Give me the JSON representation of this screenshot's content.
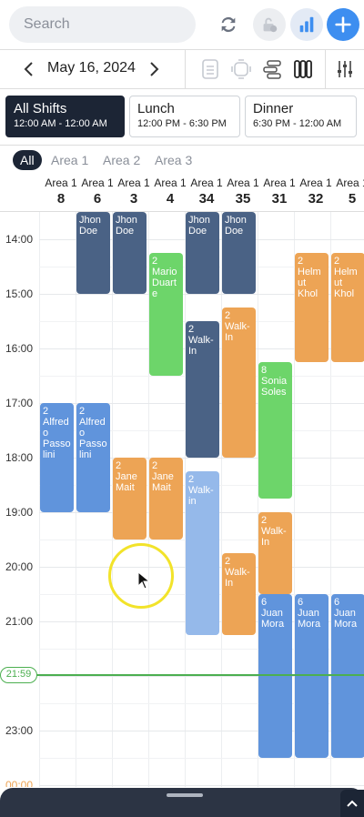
{
  "search": {
    "placeholder": "Search"
  },
  "date": {
    "label": "May 16, 2024"
  },
  "shifts": [
    {
      "name": "All Shifts",
      "time": "12:00 AM - 12:00 AM",
      "active": true
    },
    {
      "name": "Lunch",
      "time": "12:00 PM - 6:30 PM",
      "active": false
    },
    {
      "name": "Dinner",
      "time": "6:30 PM - 12:00 AM",
      "active": false
    }
  ],
  "areas": [
    "All",
    "Area 1",
    "Area 2",
    "Area 3"
  ],
  "columns": [
    {
      "area": "Area 1",
      "table": "8"
    },
    {
      "area": "Area 1",
      "table": "6"
    },
    {
      "area": "Area 1",
      "table": "3"
    },
    {
      "area": "Area 1",
      "table": "4"
    },
    {
      "area": "Area 1",
      "table": "34"
    },
    {
      "area": "Area 1",
      "table": "35"
    },
    {
      "area": "Area 1",
      "table": "31"
    },
    {
      "area": "Area 1",
      "table": "32"
    },
    {
      "area": "Area 1",
      "table": "5"
    }
  ],
  "hours": [
    "14:00",
    "15:00",
    "16:00",
    "17:00",
    "18:00",
    "19:00",
    "20:00",
    "21:00",
    "21:59",
    "23:00",
    "00:00"
  ],
  "now": "21:59",
  "colors": {
    "dark_blue": "#4a6285",
    "green": "#6dd56a",
    "orange": "#eda455",
    "blue": "#6094dc",
    "light_blue": "#95b9ea",
    "accent": "#3d8ef0",
    "now_green": "#4caf50"
  },
  "reservations": [
    {
      "col": 1,
      "start": "12:30",
      "end": "15:00",
      "party": "",
      "guest": "Jhon Doe",
      "color": "dark_blue"
    },
    {
      "col": 2,
      "start": "12:30",
      "end": "15:00",
      "party": "",
      "guest": "Jhon Doe",
      "color": "dark_blue"
    },
    {
      "col": 3,
      "start": "14:15",
      "end": "16:30",
      "party": "2",
      "guest": "Mario Duarte",
      "color": "green"
    },
    {
      "col": 4,
      "start": "12:30",
      "end": "15:00",
      "party": "",
      "guest": "Jhon Doe",
      "color": "dark_blue"
    },
    {
      "col": 4,
      "start": "15:30",
      "end": "18:00",
      "party": "2",
      "guest": "Walk-In",
      "color": "dark_blue"
    },
    {
      "col": 4,
      "start": "18:15",
      "end": "21:15",
      "party": "2",
      "guest": "Walk-in",
      "color": "light_blue"
    },
    {
      "col": 5,
      "start": "12:30",
      "end": "15:00",
      "party": "",
      "guest": "Jhon Doe",
      "color": "dark_blue"
    },
    {
      "col": 5,
      "start": "15:15",
      "end": "18:00",
      "party": "2",
      "guest": "Walk-In",
      "color": "orange"
    },
    {
      "col": 5,
      "start": "19:45",
      "end": "21:15",
      "party": "2",
      "guest": "Walk-In",
      "color": "orange"
    },
    {
      "col": 7,
      "start": "14:15",
      "end": "16:15",
      "party": "2",
      "guest": "Helmut Khol",
      "color": "orange"
    },
    {
      "col": 8,
      "start": "14:15",
      "end": "16:15",
      "party": "2",
      "guest": "Helmut Khol",
      "color": "orange"
    },
    {
      "col": 6,
      "start": "16:15",
      "end": "18:45",
      "party": "8",
      "guest": "Sonia Soles",
      "color": "green"
    },
    {
      "col": 6,
      "start": "19:00",
      "end": "20:30",
      "party": "2",
      "guest": "Walk-In",
      "color": "orange"
    },
    {
      "col": 0,
      "start": "17:00",
      "end": "19:00",
      "party": "2",
      "guest": "Alfredo Passolini",
      "color": "blue"
    },
    {
      "col": 1,
      "start": "17:00",
      "end": "19:00",
      "party": "2",
      "guest": "Alfredo Passolini",
      "color": "blue"
    },
    {
      "col": 2,
      "start": "18:00",
      "end": "19:30",
      "party": "2",
      "guest": "Jane Mait",
      "color": "orange"
    },
    {
      "col": 3,
      "start": "18:00",
      "end": "19:30",
      "party": "2",
      "guest": "Jane Mait",
      "color": "orange"
    },
    {
      "col": 6,
      "start": "20:30",
      "end": "23:30",
      "party": "6",
      "guest": "Juan Mora",
      "color": "blue"
    },
    {
      "col": 7,
      "start": "20:30",
      "end": "23:30",
      "party": "6",
      "guest": "Juan Mora",
      "color": "blue"
    },
    {
      "col": 8,
      "start": "20:30",
      "end": "23:30",
      "party": "6",
      "guest": "Juan Mora",
      "color": "blue"
    }
  ]
}
